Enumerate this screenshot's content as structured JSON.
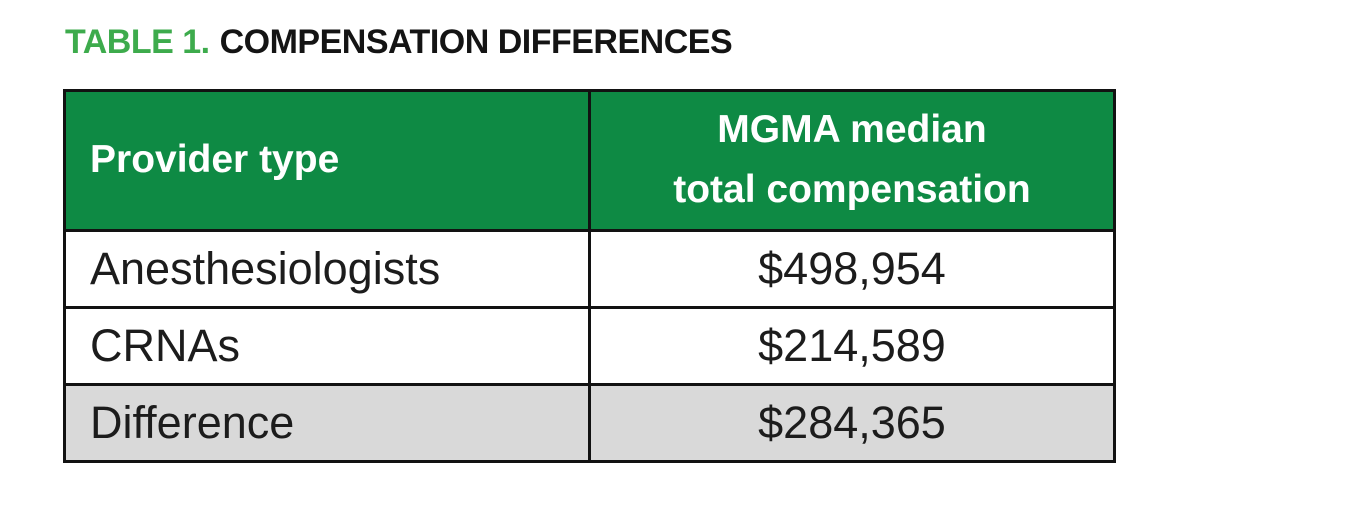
{
  "colors": {
    "title-green": "#3dab4c",
    "header-green": "#0e8a44",
    "row-gray": "#d9d9d9",
    "border-color": "#121212",
    "text-color": "#1c1c1c"
  },
  "title": {
    "prefix": "TABLE 1.",
    "main": "COMPENSATION DIFFERENCES"
  },
  "table": {
    "header": {
      "provider": "Provider type",
      "compensation_line1": "MGMA median",
      "compensation_line2": "total compensation"
    },
    "rows": [
      {
        "provider": "Anesthesiologists",
        "compensation": "$498,954"
      },
      {
        "provider": "CRNAs",
        "compensation": "$214,589"
      },
      {
        "provider": "Difference",
        "compensation": "$284,365"
      }
    ]
  },
  "chart_data": {
    "type": "table",
    "title": "TABLE 1. COMPENSATION DIFFERENCES",
    "columns": [
      "Provider type",
      "MGMA median total compensation"
    ],
    "rows": [
      [
        "Anesthesiologists",
        "$498,954"
      ],
      [
        "CRNAs",
        "$214,589"
      ],
      [
        "Difference",
        "$284,365"
      ]
    ],
    "values": {
      "Anesthesiologists": 498954,
      "CRNAs": 214589,
      "Difference": 284365
    }
  }
}
